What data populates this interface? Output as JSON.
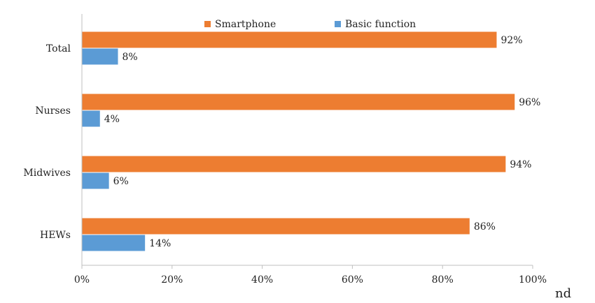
{
  "chart_data": {
    "type": "bar",
    "orientation": "horizontal",
    "categories": [
      "Total",
      "Nurses",
      "Midwives",
      "HEWs"
    ],
    "series": [
      {
        "name": "Smartphone",
        "values": [
          92,
          96,
          94,
          86
        ],
        "labels": [
          "92%",
          "96%",
          "94%",
          "86%"
        ],
        "color": "#ED7D31"
      },
      {
        "name": "Basic function",
        "values": [
          8,
          4,
          6,
          14
        ],
        "labels": [
          "8%",
          "4%",
          "6%",
          "14%"
        ],
        "color": "#5B9BD5"
      }
    ],
    "xlim": [
      0,
      100
    ],
    "xticks": [
      0,
      20,
      40,
      60,
      80,
      100
    ],
    "xtick_labels": [
      "0%",
      "20%",
      "40%",
      "60%",
      "80%",
      "100%"
    ],
    "grid": false,
    "legend_position": "top-center"
  },
  "corner_text": "nd"
}
